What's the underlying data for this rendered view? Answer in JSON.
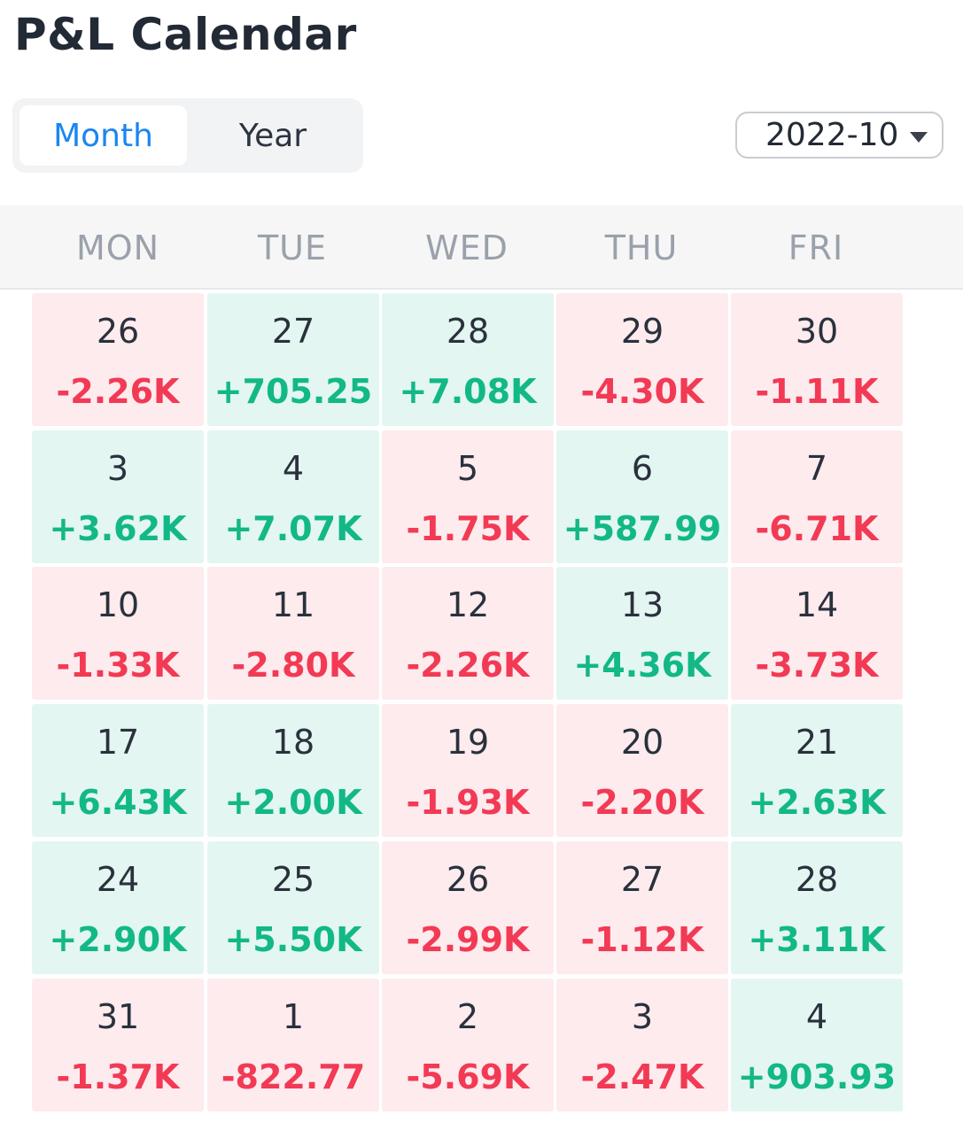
{
  "title": "P&L Calendar",
  "view_toggle": {
    "month_label": "Month",
    "year_label": "Year",
    "active": "Month"
  },
  "month_select": {
    "value": "2022-10"
  },
  "colors": {
    "accent": "#1a86f0",
    "positive": "#12b886",
    "negative": "#f23a55",
    "positive_bg": "#e3f6f2",
    "negative_bg": "#fdebee"
  },
  "weekdays": [
    "MON",
    "TUE",
    "WED",
    "THU",
    "FRI"
  ],
  "weeks": [
    [
      {
        "day": "26",
        "pnl": "-2.26K"
      },
      {
        "day": "27",
        "pnl": "+705.25"
      },
      {
        "day": "28",
        "pnl": "+7.08K"
      },
      {
        "day": "29",
        "pnl": "-4.30K"
      },
      {
        "day": "30",
        "pnl": "-1.11K"
      }
    ],
    [
      {
        "day": "3",
        "pnl": "+3.62K"
      },
      {
        "day": "4",
        "pnl": "+7.07K"
      },
      {
        "day": "5",
        "pnl": "-1.75K"
      },
      {
        "day": "6",
        "pnl": "+587.99"
      },
      {
        "day": "7",
        "pnl": "-6.71K"
      }
    ],
    [
      {
        "day": "10",
        "pnl": "-1.33K"
      },
      {
        "day": "11",
        "pnl": "-2.80K"
      },
      {
        "day": "12",
        "pnl": "-2.26K"
      },
      {
        "day": "13",
        "pnl": "+4.36K"
      },
      {
        "day": "14",
        "pnl": "-3.73K"
      }
    ],
    [
      {
        "day": "17",
        "pnl": "+6.43K"
      },
      {
        "day": "18",
        "pnl": "+2.00K"
      },
      {
        "day": "19",
        "pnl": "-1.93K"
      },
      {
        "day": "20",
        "pnl": "-2.20K"
      },
      {
        "day": "21",
        "pnl": "+2.63K"
      }
    ],
    [
      {
        "day": "24",
        "pnl": "+2.90K"
      },
      {
        "day": "25",
        "pnl": "+5.50K"
      },
      {
        "day": "26",
        "pnl": "-2.99K"
      },
      {
        "day": "27",
        "pnl": "-1.12K"
      },
      {
        "day": "28",
        "pnl": "+3.11K"
      }
    ],
    [
      {
        "day": "31",
        "pnl": "-1.37K"
      },
      {
        "day": "1",
        "pnl": "-822.77"
      },
      {
        "day": "2",
        "pnl": "-5.69K"
      },
      {
        "day": "3",
        "pnl": "-2.47K"
      },
      {
        "day": "4",
        "pnl": "+903.93"
      }
    ]
  ]
}
